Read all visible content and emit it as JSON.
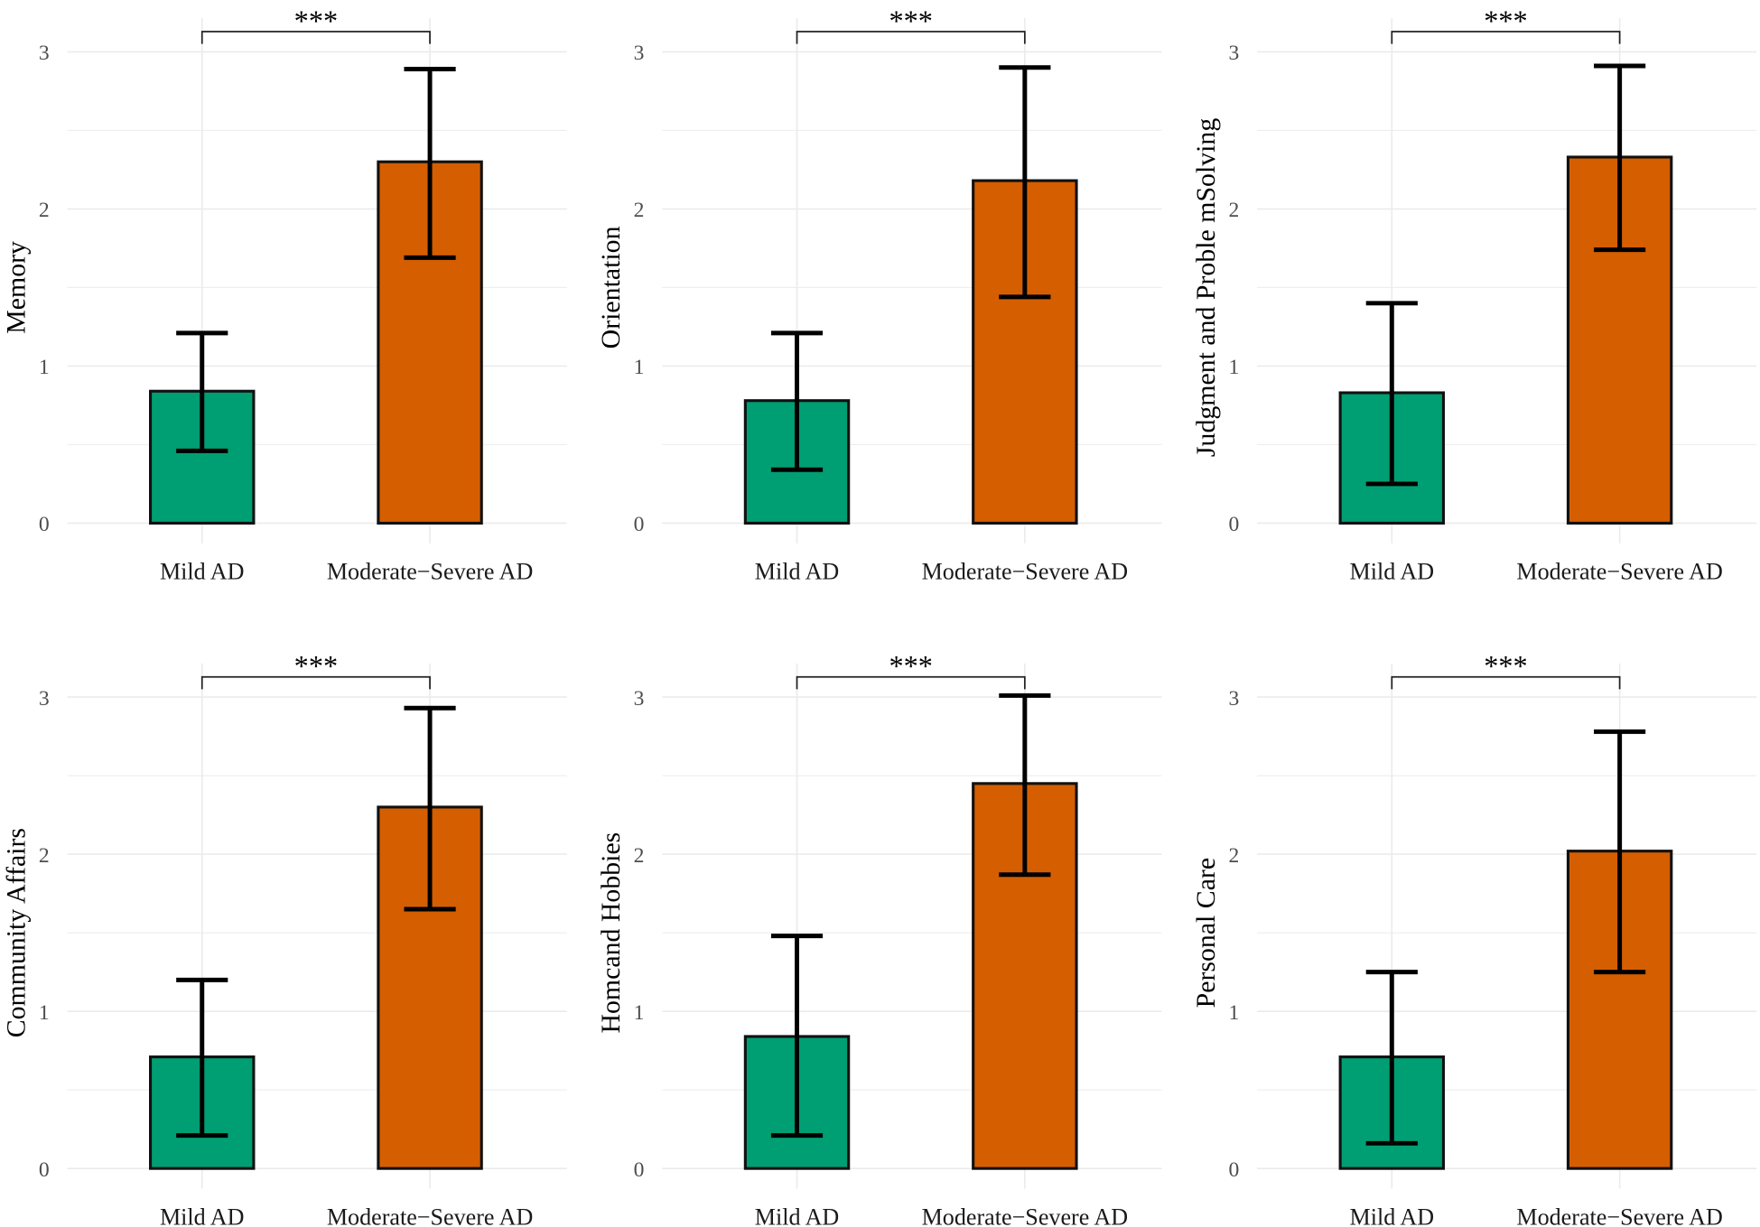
{
  "chart_data": [
    {
      "type": "bar",
      "ylabel": "Memory",
      "categories": [
        "Mild AD",
        "Moderate−Severe AD"
      ],
      "values": [
        0.84,
        2.3
      ],
      "error_low": [
        0.46,
        1.69
      ],
      "error_high": [
        1.21,
        2.89
      ],
      "significance": "***",
      "ylim": [
        0,
        3
      ],
      "yticks": [
        "0",
        "1",
        "2",
        "3"
      ],
      "grid": true
    },
    {
      "type": "bar",
      "ylabel": "Orientation",
      "categories": [
        "Mild AD",
        "Moderate−Severe AD"
      ],
      "values": [
        0.78,
        2.18
      ],
      "error_low": [
        0.34,
        1.44
      ],
      "error_high": [
        1.21,
        2.9
      ],
      "significance": "***",
      "ylim": [
        0,
        3
      ],
      "yticks": [
        "0",
        "1",
        "2",
        "3"
      ],
      "grid": true
    },
    {
      "type": "bar",
      "ylabel": "Judgment and Proble mSolving",
      "categories": [
        "Mild AD",
        "Moderate−Severe AD"
      ],
      "values": [
        0.83,
        2.33
      ],
      "error_low": [
        0.25,
        1.74
      ],
      "error_high": [
        1.4,
        2.91
      ],
      "significance": "***",
      "ylim": [
        0,
        3
      ],
      "yticks": [
        "0",
        "1",
        "2",
        "3"
      ],
      "grid": true
    },
    {
      "type": "bar",
      "ylabel": "Community Affairs",
      "categories": [
        "Mild AD",
        "Moderate−Severe AD"
      ],
      "values": [
        0.71,
        2.3
      ],
      "error_low": [
        0.21,
        1.65
      ],
      "error_high": [
        1.2,
        2.93
      ],
      "significance": "***",
      "ylim": [
        0,
        3
      ],
      "yticks": [
        "0",
        "1",
        "2",
        "3"
      ],
      "grid": true
    },
    {
      "type": "bar",
      "ylabel": "Homcand Hobbies",
      "categories": [
        "Mild AD",
        "Moderate−Severe AD"
      ],
      "values": [
        0.84,
        2.45
      ],
      "error_low": [
        0.21,
        1.87
      ],
      "error_high": [
        1.48,
        3.01
      ],
      "significance": "***",
      "ylim": [
        0,
        3
      ],
      "yticks": [
        "0",
        "1",
        "2",
        "3"
      ],
      "grid": true
    },
    {
      "type": "bar",
      "ylabel": "Personal Care",
      "categories": [
        "Mild AD",
        "Moderate−Severe AD"
      ],
      "values": [
        0.71,
        2.02
      ],
      "error_low": [
        0.16,
        1.25
      ],
      "error_high": [
        1.25,
        2.78
      ],
      "significance": "***",
      "ylim": [
        0,
        3
      ],
      "yticks": [
        "0",
        "1",
        "2",
        "3"
      ],
      "grid": true
    }
  ],
  "colors": {
    "mild": "#009E73",
    "severe": "#D55E00",
    "grid": "#ebebeb"
  }
}
